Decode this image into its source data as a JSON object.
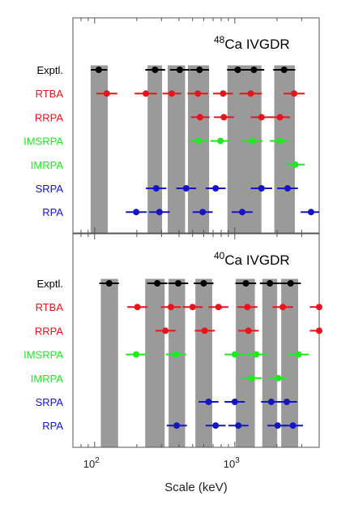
{
  "chart_data": {
    "type": "scatter",
    "xscale": "log",
    "xlim": [
      70,
      4000
    ],
    "xlabel": "Scale (keV)",
    "xticks": [
      {
        "value": 100,
        "label": "10",
        "sup": "2"
      },
      {
        "value": 1000,
        "label": "10",
        "sup": "3"
      }
    ],
    "grid": false,
    "colors": {
      "Exptl.": "#000000",
      "RTBA": "#e8141a",
      "RRPA": "#e8141a",
      "IMSRPA": "#22e822",
      "IMRPA": "#22e822",
      "SRPA": "#1414c8",
      "RPA": "#1414c8",
      "band": "#9a9a9a"
    },
    "panels": [
      {
        "title_mass": "48",
        "title_rest": "Ca  IVGDR",
        "rows": [
          "Exptl.",
          "RTBA",
          "RRPA",
          "IMSRPA",
          "IMRPA",
          "SRPA",
          "RPA"
        ],
        "bands": [
          [
            93,
            125
          ],
          [
            237,
            305
          ],
          [
            330,
            445
          ],
          [
            460,
            660
          ],
          [
            880,
            1560
          ],
          [
            1900,
            2700
          ]
        ],
        "points": {
          "Exptl.": [
            [
              107,
              94,
              123
            ],
            [
              270,
              230,
              318
            ],
            [
              405,
              345,
              475
            ],
            [
              560,
              480,
              655
            ],
            [
              1050,
              880,
              1250
            ],
            [
              1370,
              1150,
              1620
            ],
            [
              2250,
              1880,
              2700
            ]
          ],
          "RTBA": [
            [
              122,
              103,
              145
            ],
            [
              232,
              193,
              278
            ],
            [
              355,
              305,
              415
            ],
            [
              545,
              460,
              645
            ],
            [
              825,
              700,
              970
            ],
            [
              1300,
              1080,
              1560
            ],
            [
              2650,
              2230,
              3150
            ]
          ],
          "RRPA": [
            [
              565,
              485,
              660
            ],
            [
              835,
              710,
              985
            ],
            [
              1550,
              1300,
              1850
            ],
            [
              2100,
              1780,
              2480
            ]
          ],
          "IMSRPA": [
            [
              550,
              470,
              645
            ],
            [
              790,
              670,
              930
            ],
            [
              1330,
              1120,
              1580
            ],
            [
              2100,
              1780,
              2480
            ]
          ],
          "IMRPA": [
            [
              2700,
              2300,
              3150
            ]
          ],
          "SRPA": [
            [
              275,
              232,
              325
            ],
            [
              450,
              382,
              530
            ],
            [
              730,
              620,
              860
            ],
            [
              1550,
              1300,
              1850
            ],
            [
              2380,
              2010,
              2820
            ]
          ],
          "RPA": [
            [
              198,
              167,
              235
            ],
            [
              290,
              245,
              343
            ],
            [
              590,
              500,
              695
            ],
            [
              1130,
              950,
              1340
            ],
            [
              3500,
              2950,
              4000
            ]
          ]
        }
      },
      {
        "title_mass": "40",
        "title_rest": "Ca  IVGDR",
        "rows": [
          "Exptl.",
          "RTBA",
          "RRPA",
          "IMSRPA",
          "IMRPA",
          "SRPA",
          "RPA"
        ],
        "bands": [
          [
            110,
            148
          ],
          [
            228,
            318
          ],
          [
            335,
            445
          ],
          [
            520,
            695
          ],
          [
            1010,
            1400
          ],
          [
            1560,
            2020
          ],
          [
            2130,
            2850
          ]
        ],
        "points": {
          "Exptl.": [
            [
              127,
              108,
              149
            ],
            [
              280,
              237,
              330
            ],
            [
              395,
              335,
              465
            ],
            [
              600,
              510,
              705
            ],
            [
              1200,
              1010,
              1420
            ],
            [
              1780,
              1510,
              2100
            ],
            [
              2500,
              2110,
              2960
            ]
          ],
          "RTBA": [
            [
              202,
              171,
              239
            ],
            [
              350,
              297,
              413
            ],
            [
              500,
              425,
              590
            ],
            [
              765,
              650,
              900
            ],
            [
              1230,
              1040,
              1450
            ],
            [
              2200,
              1860,
              2600
            ],
            [
              4050,
              3430,
              4000
            ]
          ],
          "RRPA": [
            [
              320,
              272,
              378
            ],
            [
              610,
              518,
              720
            ],
            [
              1250,
              1060,
              1480
            ],
            [
              4050,
              3430,
              4000
            ]
          ],
          "IMSRPA": [
            [
              198,
              167,
              235
            ],
            [
              380,
              322,
              450
            ],
            [
              1000,
              845,
              1180
            ],
            [
              1420,
              1200,
              1680
            ],
            [
              2850,
              2410,
              3370
            ]
          ],
          "IMRPA": [
            [
              1320,
              1120,
              1560
            ],
            [
              2040,
              1730,
              2410
            ]
          ],
          "SRPA": [
            [
              650,
              552,
              765
            ],
            [
              1000,
              845,
              1180
            ],
            [
              1820,
              1540,
              2150
            ],
            [
              2350,
              1990,
              2780
            ]
          ],
          "RPA": [
            [
              385,
              327,
              455
            ],
            [
              730,
              620,
              860
            ],
            [
              1060,
              900,
              1250
            ],
            [
              2020,
              1710,
              2390
            ],
            [
              2600,
              2200,
              3070
            ]
          ]
        }
      }
    ]
  }
}
